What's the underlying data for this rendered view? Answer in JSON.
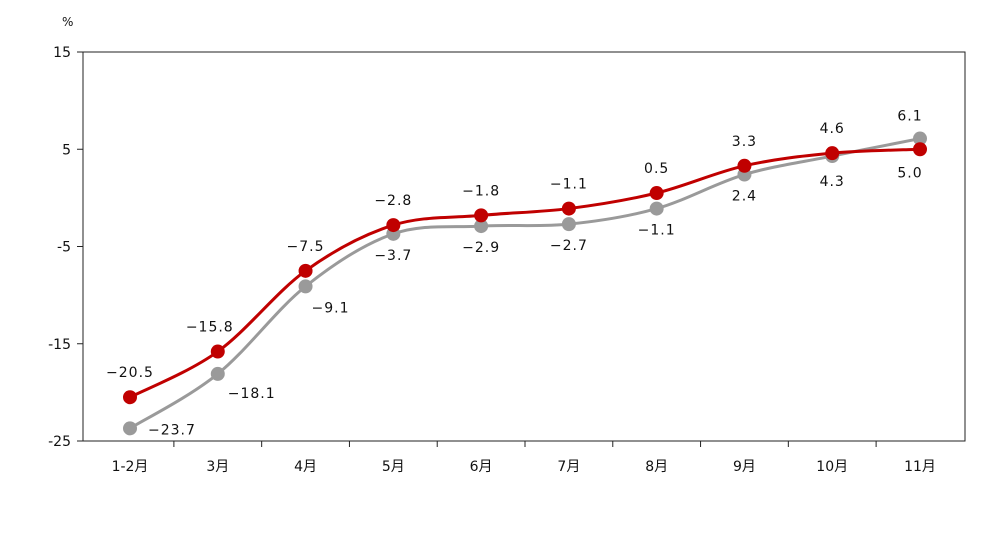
{
  "chart_data": {
    "type": "line",
    "title": "",
    "xlabel": "",
    "ylabel": "%",
    "ylim": [
      -25,
      15
    ],
    "yticks": [
      15,
      5,
      -5,
      -15,
      -25
    ],
    "grid": false,
    "legend": "none",
    "categories": [
      "1-2月",
      "3月",
      "4月",
      "5月",
      "6月",
      "7月",
      "8月",
      "9月",
      "10月",
      "11月"
    ],
    "series": [
      {
        "color": "#c00000",
        "values": [
          -20.5,
          -15.8,
          -7.5,
          -2.8,
          -1.8,
          -1.1,
          0.5,
          3.3,
          4.6,
          5.0
        ],
        "labels": [
          "−20.5",
          "−15.8",
          "−7.5",
          "−2.8",
          "−1.8",
          "−1.1",
          "0.5",
          "3.3",
          "4.6",
          "5.0"
        ]
      },
      {
        "color": "#9a9a9a",
        "values": [
          -23.7,
          -18.1,
          -9.1,
          -3.7,
          -2.9,
          -2.7,
          -1.1,
          2.4,
          4.3,
          6.1
        ],
        "labels": [
          "−23.7",
          "−18.1",
          "−9.1",
          "−3.7",
          "−2.9",
          "−2.7",
          "−1.1",
          "2.4",
          "4.3",
          "6.1"
        ]
      }
    ]
  }
}
